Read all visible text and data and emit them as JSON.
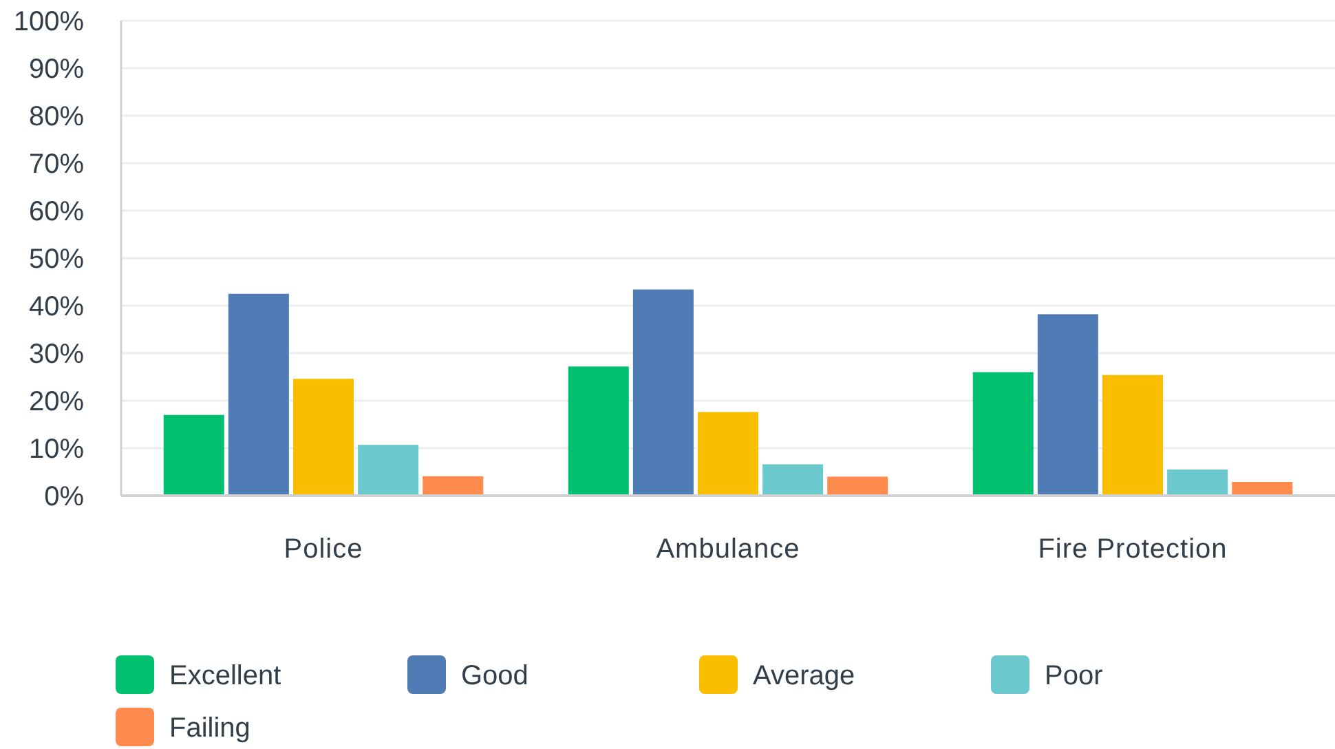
{
  "chart_data": {
    "type": "bar",
    "categories": [
      "Police",
      "Ambulance",
      "Fire Protection"
    ],
    "series": [
      {
        "name": "Excellent",
        "color": "#00bf6f",
        "values": [
          17,
          27.2,
          26
        ]
      },
      {
        "name": "Good",
        "color": "#507cb6",
        "values": [
          42.5,
          43.4,
          38.2
        ]
      },
      {
        "name": "Average",
        "color": "#f9be00",
        "values": [
          24.6,
          17.6,
          25.4
        ]
      },
      {
        "name": "Poor",
        "color": "#6bc8cd",
        "values": [
          10.7,
          6.6,
          5.5
        ]
      },
      {
        "name": "Failing",
        "color": "#ff8b4f",
        "values": [
          4.1,
          4,
          2.9
        ]
      }
    ],
    "ylim": [
      0,
      100
    ],
    "yticks": [
      {
        "value": 0,
        "label": "0%"
      },
      {
        "value": 10,
        "label": "10%"
      },
      {
        "value": 20,
        "label": "20%"
      },
      {
        "value": 30,
        "label": "30%"
      },
      {
        "value": 40,
        "label": "40%"
      },
      {
        "value": 50,
        "label": "50%"
      },
      {
        "value": 60,
        "label": "60%"
      },
      {
        "value": 70,
        "label": "70%"
      },
      {
        "value": 80,
        "label": "80%"
      },
      {
        "value": 90,
        "label": "90%"
      },
      {
        "value": 100,
        "label": "100%"
      }
    ],
    "grid": "y",
    "legend": "bottom"
  }
}
